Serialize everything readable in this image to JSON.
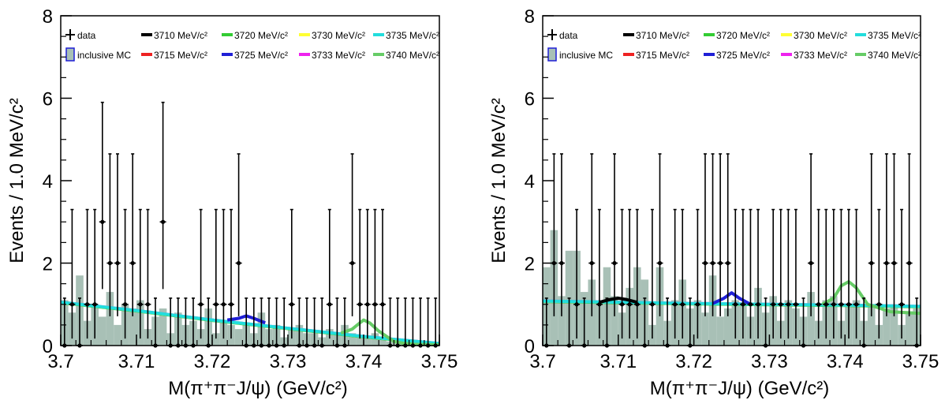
{
  "chart_data": [
    {
      "type": "bar",
      "panel": "left",
      "xlabel": "M(π⁺π⁻J/ψ) (GeV/c²)",
      "ylabel": "Events / 1.0 MeV/c²",
      "xlim": [
        3.7,
        3.75
      ],
      "ylim": [
        0,
        8
      ],
      "xticks": [
        "3.7",
        "3.71",
        "3.72",
        "3.73",
        "3.74",
        "3.75"
      ],
      "yticks": [
        "0",
        "2",
        "4",
        "6",
        "8"
      ],
      "grid": false,
      "legend_position": "top",
      "legend": {
        "data": "data",
        "mc": "inclusive MC",
        "masses": [
          "3710",
          "3720",
          "3730",
          "3735",
          "3715",
          "3725",
          "3733",
          "3740"
        ],
        "unit": "MeV/c²",
        "colors": [
          "#000000",
          "#33cc33",
          "#ffff33",
          "#22dddd",
          "#ee2222",
          "#1f1fd6",
          "#ee22ee",
          "#66cc66"
        ]
      },
      "data_points": [
        {
          "x": 3.7005,
          "y": 0
        },
        {
          "x": 3.7015,
          "y": 1
        },
        {
          "x": 3.7025,
          "y": 0
        },
        {
          "x": 3.7035,
          "y": 1
        },
        {
          "x": 3.7045,
          "y": 1
        },
        {
          "x": 3.7055,
          "y": 3
        },
        {
          "x": 3.7065,
          "y": 2
        },
        {
          "x": 3.7075,
          "y": 2
        },
        {
          "x": 3.7085,
          "y": 1
        },
        {
          "x": 3.7095,
          "y": 2
        },
        {
          "x": 3.7105,
          "y": 1
        },
        {
          "x": 3.7115,
          "y": 1
        },
        {
          "x": 3.7125,
          "y": 0
        },
        {
          "x": 3.7135,
          "y": 3
        },
        {
          "x": 3.7145,
          "y": 0
        },
        {
          "x": 3.7155,
          "y": 0
        },
        {
          "x": 3.7165,
          "y": 0
        },
        {
          "x": 3.7175,
          "y": 0
        },
        {
          "x": 3.7185,
          "y": 1
        },
        {
          "x": 3.7195,
          "y": 0
        },
        {
          "x": 3.7205,
          "y": 1
        },
        {
          "x": 3.7215,
          "y": 1
        },
        {
          "x": 3.7225,
          "y": 1
        },
        {
          "x": 3.7235,
          "y": 2
        },
        {
          "x": 3.7245,
          "y": 0
        },
        {
          "x": 3.7255,
          "y": 0
        },
        {
          "x": 3.7265,
          "y": 0
        },
        {
          "x": 3.7275,
          "y": 0
        },
        {
          "x": 3.7285,
          "y": 0
        },
        {
          "x": 3.7295,
          "y": 0
        },
        {
          "x": 3.7305,
          "y": 1
        },
        {
          "x": 3.7315,
          "y": 0
        },
        {
          "x": 3.7325,
          "y": 0
        },
        {
          "x": 3.7335,
          "y": 0
        },
        {
          "x": 3.7345,
          "y": 0
        },
        {
          "x": 3.7355,
          "y": 1
        },
        {
          "x": 3.7365,
          "y": 0
        },
        {
          "x": 3.7375,
          "y": 0
        },
        {
          "x": 3.7385,
          "y": 2
        },
        {
          "x": 3.7395,
          "y": 1
        },
        {
          "x": 3.7405,
          "y": 1
        },
        {
          "x": 3.7415,
          "y": 1
        },
        {
          "x": 3.7425,
          "y": 1
        },
        {
          "x": 3.7435,
          "y": 0
        },
        {
          "x": 3.7445,
          "y": 0
        },
        {
          "x": 3.7455,
          "y": 0
        },
        {
          "x": 3.7465,
          "y": 0
        },
        {
          "x": 3.7475,
          "y": 0
        },
        {
          "x": 3.7485,
          "y": 0
        },
        {
          "x": 3.7495,
          "y": 0
        }
      ],
      "mc_histogram": [
        1.1,
        0.8,
        1.7,
        0.6,
        1.0,
        0.7,
        1.3,
        0.5,
        1.0,
        0.9,
        1.1,
        0.4,
        0.7,
        0.9,
        0.3,
        0.8,
        0.5,
        0.6,
        0.4,
        0.9,
        0.3,
        0.6,
        0.5,
        0.4,
        0.5,
        0.3,
        0.8,
        0.4,
        0.5,
        0.2,
        0.4,
        0.5,
        0.3,
        0.3,
        0.2,
        0.4,
        0.3,
        0.5,
        0.3,
        0.2,
        0.2,
        0.3,
        0.2,
        0.1,
        0.1,
        0.1,
        0.1,
        0.1,
        0.05,
        0.05
      ],
      "curves": {
        "background": {
          "x": [
            3.7,
            3.71,
            3.72,
            3.73,
            3.74,
            3.75
          ],
          "y": [
            1.05,
            0.85,
            0.62,
            0.42,
            0.22,
            0.05
          ]
        },
        "peak_3725": {
          "x": [
            3.722,
            3.7235,
            3.7245,
            3.7255,
            3.727
          ],
          "y": [
            0.62,
            0.66,
            0.72,
            0.66,
            0.55
          ]
        },
        "peak_3740": {
          "x": [
            3.737,
            3.7385,
            3.7395,
            3.74,
            3.7408,
            3.742,
            3.744,
            3.746,
            3.75
          ],
          "y": [
            0.3,
            0.4,
            0.55,
            0.62,
            0.55,
            0.35,
            0.1,
            0.03,
            0.02
          ]
        }
      }
    },
    {
      "type": "bar",
      "panel": "right",
      "xlabel": "M(π⁺π⁻J/ψ) (GeV/c²)",
      "ylabel": "Events / 1.0 MeV/c²",
      "xlim": [
        3.7,
        3.75
      ],
      "ylim": [
        0,
        8
      ],
      "xticks": [
        "3.7",
        "3.71",
        "3.72",
        "3.73",
        "3.74",
        "3.75"
      ],
      "yticks": [
        "0",
        "2",
        "4",
        "6",
        "8"
      ],
      "grid": false,
      "legend_position": "top",
      "legend": {
        "data": "data",
        "mc": "inclusive MC",
        "masses": [
          "3710",
          "3720",
          "3730",
          "3735",
          "3715",
          "3725",
          "3733",
          "3740"
        ],
        "unit": "MeV/c²",
        "colors": [
          "#000000",
          "#33cc33",
          "#ffff33",
          "#22dddd",
          "#ee2222",
          "#1f1fd6",
          "#ee22ee",
          "#66cc66"
        ]
      },
      "data_points": [
        {
          "x": 3.7005,
          "y": 0
        },
        {
          "x": 3.7015,
          "y": 2
        },
        {
          "x": 3.7025,
          "y": 2
        },
        {
          "x": 3.7035,
          "y": 0
        },
        {
          "x": 3.7045,
          "y": 1
        },
        {
          "x": 3.7055,
          "y": 0
        },
        {
          "x": 3.7065,
          "y": 2
        },
        {
          "x": 3.7075,
          "y": 1
        },
        {
          "x": 3.7085,
          "y": 0
        },
        {
          "x": 3.7095,
          "y": 2
        },
        {
          "x": 3.7105,
          "y": 1
        },
        {
          "x": 3.7115,
          "y": 1
        },
        {
          "x": 3.7125,
          "y": 1
        },
        {
          "x": 3.7135,
          "y": 0
        },
        {
          "x": 3.7145,
          "y": 1
        },
        {
          "x": 3.7155,
          "y": 2
        },
        {
          "x": 3.7165,
          "y": 0
        },
        {
          "x": 3.7175,
          "y": 1
        },
        {
          "x": 3.7185,
          "y": 1
        },
        {
          "x": 3.7195,
          "y": 0
        },
        {
          "x": 3.7205,
          "y": 1
        },
        {
          "x": 3.7215,
          "y": 2
        },
        {
          "x": 3.7225,
          "y": 2
        },
        {
          "x": 3.7235,
          "y": 2
        },
        {
          "x": 3.7245,
          "y": 2
        },
        {
          "x": 3.7255,
          "y": 1
        },
        {
          "x": 3.7265,
          "y": 1
        },
        {
          "x": 3.7275,
          "y": 1
        },
        {
          "x": 3.7285,
          "y": 1
        },
        {
          "x": 3.7295,
          "y": 0
        },
        {
          "x": 3.7305,
          "y": 1
        },
        {
          "x": 3.7315,
          "y": 1
        },
        {
          "x": 3.7325,
          "y": 1
        },
        {
          "x": 3.7335,
          "y": 1
        },
        {
          "x": 3.7345,
          "y": 0
        },
        {
          "x": 3.7355,
          "y": 2
        },
        {
          "x": 3.7365,
          "y": 1
        },
        {
          "x": 3.7375,
          "y": 1
        },
        {
          "x": 3.7385,
          "y": 1
        },
        {
          "x": 3.7395,
          "y": 1
        },
        {
          "x": 3.7405,
          "y": 1
        },
        {
          "x": 3.7415,
          "y": 1
        },
        {
          "x": 3.7425,
          "y": 0
        },
        {
          "x": 3.7435,
          "y": 2
        },
        {
          "x": 3.7445,
          "y": 1
        },
        {
          "x": 3.7455,
          "y": 2
        },
        {
          "x": 3.7465,
          "y": 2
        },
        {
          "x": 3.7475,
          "y": 1
        },
        {
          "x": 3.7485,
          "y": 2
        },
        {
          "x": 3.7495,
          "y": 0
        }
      ],
      "mc_histogram": [
        1.9,
        2.8,
        1.2,
        2.3,
        2.3,
        1.3,
        1.6,
        1.1,
        1.9,
        1.2,
        0.8,
        1.4,
        1.9,
        1.6,
        0.5,
        1.9,
        0.6,
        1.1,
        1.6,
        0.9,
        1.1,
        0.8,
        1.7,
        0.7,
        0.9,
        1.1,
        1.0,
        0.7,
        1.4,
        0.8,
        1.2,
        0.6,
        1.1,
        0.9,
        0.7,
        1.3,
        0.6,
        1.1,
        1.2,
        0.6,
        1.0,
        1.1,
        0.6,
        1.0,
        0.5,
        0.9,
        1.0,
        0.5,
        0.8,
        0.9
      ],
      "curves": {
        "background": {
          "x": [
            3.7,
            3.71,
            3.72,
            3.73,
            3.74,
            3.75
          ],
          "y": [
            1.08,
            1.05,
            1.02,
            1.0,
            0.98,
            0.95
          ]
        },
        "peak_3710": {
          "x": [
            3.7075,
            3.709,
            3.71,
            3.711,
            3.7125
          ],
          "y": [
            1.05,
            1.12,
            1.15,
            1.12,
            1.05
          ]
        },
        "peak_3725": {
          "x": [
            3.7225,
            3.724,
            3.725,
            3.726,
            3.7275
          ],
          "y": [
            1.02,
            1.15,
            1.28,
            1.15,
            1.0
          ]
        },
        "peak_3740": {
          "x": [
            3.737,
            3.7385,
            3.7395,
            3.7405,
            3.7415,
            3.743,
            3.746,
            3.75
          ],
          "y": [
            1.0,
            1.15,
            1.45,
            1.55,
            1.4,
            1.0,
            0.82,
            0.78
          ]
        }
      }
    }
  ]
}
